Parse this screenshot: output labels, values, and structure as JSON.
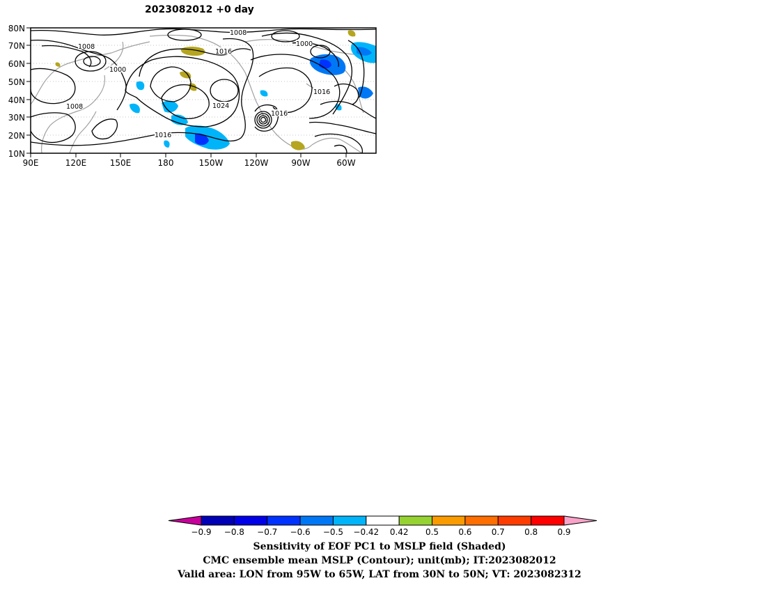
{
  "map": {
    "title": "2023082012  +0 day",
    "lat_labels": [
      "80N",
      "70N",
      "60N",
      "50N",
      "40N",
      "30N",
      "20N",
      "10N"
    ],
    "lon_labels": [
      "90E",
      "120E",
      "150E",
      "180",
      "150W",
      "120W",
      "90W",
      "60W"
    ],
    "contour_labels": [
      "1008",
      "1008",
      "1000",
      "1016",
      "1000",
      "1008",
      "1024",
      "1016",
      "1016",
      "1016"
    ]
  },
  "colorbar": {
    "tick_labels": [
      "-0.9",
      "-0.8",
      "-0.7",
      "-0.6",
      "-0.5",
      "-0.42",
      "0.42",
      "0.5",
      "0.6",
      "0.7",
      "0.8",
      "0.9"
    ],
    "colors": [
      "#c8009b",
      "#0000b4",
      "#0000e6",
      "#0032ff",
      "#0078f5",
      "#00b4fa",
      "#ffffff",
      "#96d232",
      "#fa9b00",
      "#ff6e00",
      "#ff3c00",
      "#ff0000",
      "#f9a3c8"
    ]
  },
  "caption": {
    "line1": "Sensitivity of EOF PC1 to MSLP field (Shaded)",
    "line2": "CMC ensemble mean MSLP (Contour); unit(mb); IT:2023082012",
    "line3": "Valid area: LON from 95W to 65W, LAT from 30N to 50N; VT: 2023082312"
  }
}
